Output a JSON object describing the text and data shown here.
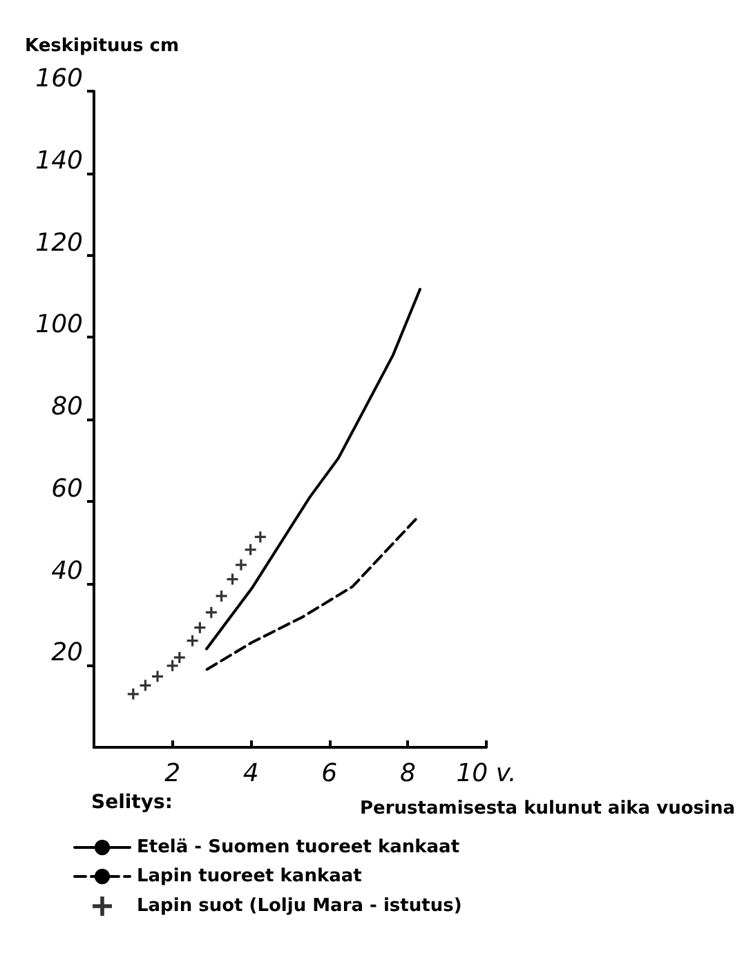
{
  "chart_data": {
    "type": "line",
    "ylabel": "Keskipituus cm",
    "xlabel": "Perustamisesta kulunut aika vuosina",
    "legend_title": "Selitys:",
    "legend": "bottom",
    "grid": false,
    "xlim": [
      0,
      10
    ],
    "xticks": [
      2,
      4,
      6,
      8,
      {
        "value": 10,
        "label": "10 v."
      }
    ],
    "ylim": [
      0,
      160
    ],
    "yticks": [
      20,
      40,
      60,
      80,
      100,
      120,
      140,
      160
    ],
    "series": [
      {
        "name": "Etelä - Suomen tuoreet kankaat",
        "color": "#000000",
        "line_style": "solid",
        "marker": "none",
        "x": [
          2.87,
          4.04,
          5.5,
          6.23,
          7.62,
          8.31
        ],
        "values": [
          24,
          39,
          61,
          70.5,
          95.6,
          111.7
        ]
      },
      {
        "name": "Lapin tuoreet kankaat",
        "color": "#000000",
        "line_style": "dashed",
        "marker": "none",
        "x": [
          2.88,
          4.03,
          5.32,
          6.59,
          8.2
        ],
        "values": [
          19,
          25.6,
          31.8,
          39.2,
          55.6
        ]
      },
      {
        "name": "Lapin suot (Lolju Mara - istutus)",
        "type": "scatter",
        "color": "#000000",
        "marker": "cross",
        "x": [
          1.0,
          1.31,
          1.62,
          2.0,
          2.18,
          2.51,
          2.7,
          2.99,
          3.25,
          3.53,
          3.75,
          3.99,
          4.24
        ],
        "values": [
          13,
          15.1,
          17.3,
          19.9,
          21.9,
          26,
          29.2,
          32.9,
          36.9,
          41,
          44.5,
          48.2,
          51.3
        ]
      }
    ]
  }
}
